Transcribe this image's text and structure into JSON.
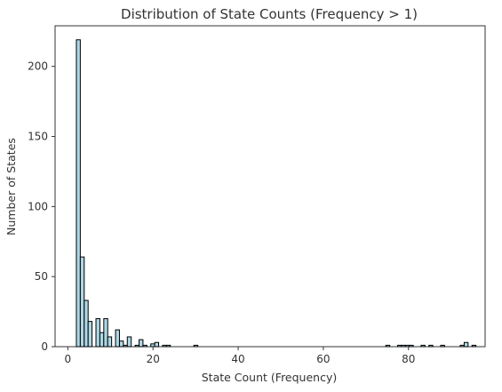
{
  "chart_data": {
    "type": "bar",
    "subtype": "histogram",
    "title": "Distribution of State Counts (Frequency > 1)",
    "xlabel": "State Count (Frequency)",
    "ylabel": "Number of States",
    "xlim": [
      -3,
      98
    ],
    "ylim": [
      0,
      229
    ],
    "xticks": [
      0,
      20,
      40,
      60,
      80
    ],
    "yticks": [
      0,
      50,
      100,
      150,
      200
    ],
    "bin_width": 0.92,
    "grid": false,
    "bar_fill": "#add8e6",
    "bar_edge": "#000000",
    "bins": [
      {
        "x": 2.0,
        "count": 219
      },
      {
        "x": 2.92,
        "count": 64
      },
      {
        "x": 3.84,
        "count": 33
      },
      {
        "x": 4.76,
        "count": 18
      },
      {
        "x": 5.68,
        "count": 0
      },
      {
        "x": 6.6,
        "count": 20
      },
      {
        "x": 7.52,
        "count": 10
      },
      {
        "x": 8.44,
        "count": 20
      },
      {
        "x": 9.36,
        "count": 7
      },
      {
        "x": 10.28,
        "count": 0
      },
      {
        "x": 11.2,
        "count": 12
      },
      {
        "x": 12.12,
        "count": 4
      },
      {
        "x": 13.04,
        "count": 1
      },
      {
        "x": 13.96,
        "count": 7
      },
      {
        "x": 14.88,
        "count": 0
      },
      {
        "x": 15.8,
        "count": 1
      },
      {
        "x": 16.72,
        "count": 5
      },
      {
        "x": 17.64,
        "count": 1
      },
      {
        "x": 18.56,
        "count": 0
      },
      {
        "x": 19.48,
        "count": 2
      },
      {
        "x": 20.4,
        "count": 3
      },
      {
        "x": 22.24,
        "count": 1
      },
      {
        "x": 23.16,
        "count": 1
      },
      {
        "x": 29.6,
        "count": 1
      },
      {
        "x": 74.68,
        "count": 1
      },
      {
        "x": 77.44,
        "count": 1
      },
      {
        "x": 78.36,
        "count": 1
      },
      {
        "x": 79.28,
        "count": 1
      },
      {
        "x": 80.2,
        "count": 1
      },
      {
        "x": 82.96,
        "count": 1
      },
      {
        "x": 84.8,
        "count": 1
      },
      {
        "x": 87.56,
        "count": 1
      },
      {
        "x": 92.16,
        "count": 1
      },
      {
        "x": 93.08,
        "count": 3
      },
      {
        "x": 94.92,
        "count": 1
      }
    ]
  }
}
